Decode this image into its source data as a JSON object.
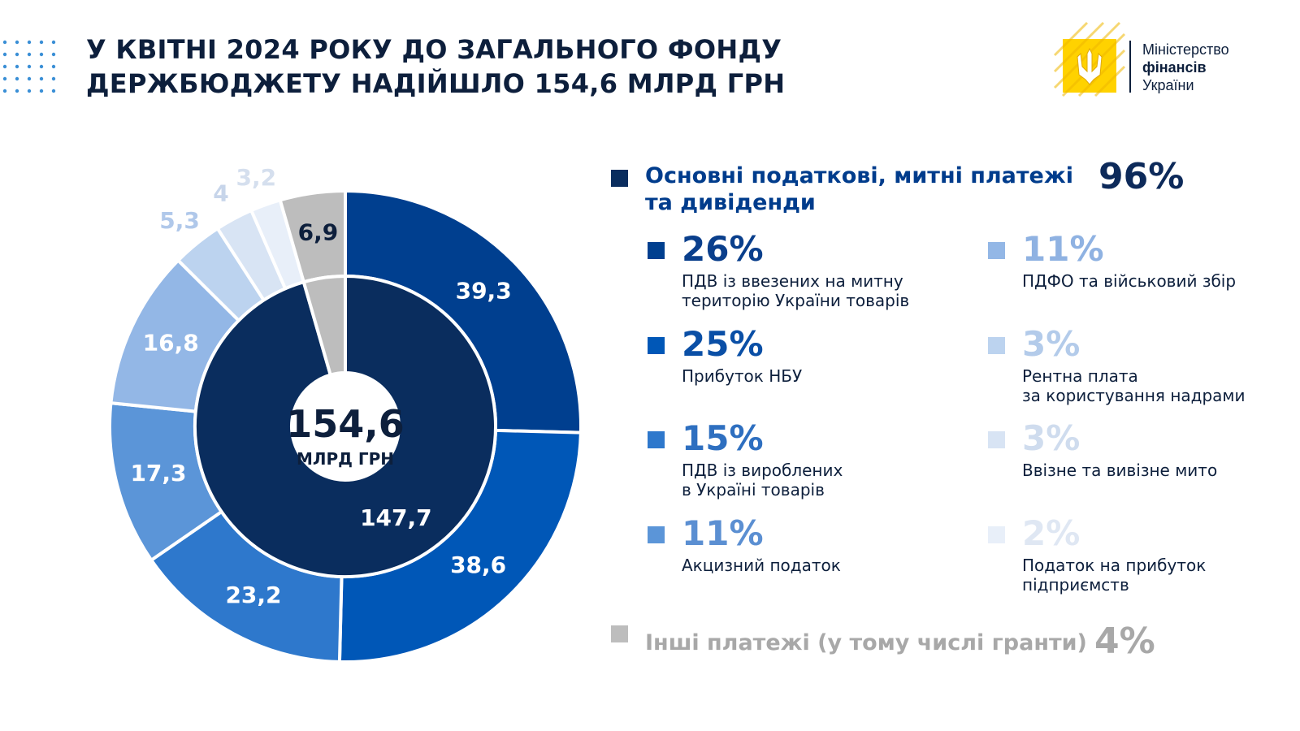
{
  "header": {
    "title_line1": "У КВІТНІ 2024 РОКУ ДО ЗАГАЛЬНОГО ФОНДУ",
    "title_line2": "ДЕРЖБЮДЖЕТУ НАДІЙШЛО 154,6 МЛРД ГРН"
  },
  "logo": {
    "line1": "Міністерство",
    "line2": "фінансів",
    "line3": "України"
  },
  "chart_data": {
    "type": "pie",
    "variant": "nested-donut",
    "center_value": "154,6",
    "center_unit": "МЛРД ГРН",
    "inner_ring": [
      {
        "name": "Основні податкові, митні платежі та дивіденди",
        "value": 147.7,
        "label": "147,7",
        "color": "#0a2d5e"
      },
      {
        "name": "Інші платежі (у тому числі гранти)",
        "value": 6.9,
        "label": "6,9",
        "color": "#bdbdbd"
      }
    ],
    "outer_ring": [
      {
        "name": "ПДВ із ввезених на митну територію України товарів",
        "value": 39.3,
        "label": "39,3",
        "color": "#003f8f",
        "label_color": "#ffffff"
      },
      {
        "name": "Прибуток НБУ",
        "value": 38.6,
        "label": "38,6",
        "color": "#0057b7",
        "label_color": "#ffffff"
      },
      {
        "name": "ПДВ із вироблених в Україні товарів",
        "value": 23.2,
        "label": "23,2",
        "color": "#2e78cc",
        "label_color": "#ffffff"
      },
      {
        "name": "Акцизний податок",
        "value": 17.3,
        "label": "17,3",
        "color": "#5b95d8",
        "label_color": "#ffffff"
      },
      {
        "name": "ПДФО та військовий збір",
        "value": 16.8,
        "label": "16,8",
        "color": "#93b7e6",
        "label_color": "#ffffff"
      },
      {
        "name": "Рентна плата за користування надрами",
        "value": 5.3,
        "label": "5,3",
        "color": "#bcd3ef",
        "label_color": "#b0c8ea"
      },
      {
        "name": "Ввізне та вивізне мито",
        "value": 4.0,
        "label": "4",
        "color": "#d8e4f4",
        "label_color": "#c7d5ea"
      },
      {
        "name": "Податок на прибуток підприємств",
        "value": 3.2,
        "label": "3,2",
        "color": "#e8eff9",
        "label_color": "#d5dfee"
      },
      {
        "name": "Інші платежі",
        "value": 6.9,
        "label": "6,9",
        "color": "#bdbdbd",
        "label_color": "#0d1f3c"
      }
    ]
  },
  "legend": {
    "main_label_line1": "Основні податкові, митні платежі",
    "main_label_line2": "та дивіденди",
    "main_pct": "96%",
    "main_color": "#0a2d5e",
    "items_left": [
      {
        "pct": "26%",
        "label_line1": "ПДВ із ввезених на митну",
        "label_line2": "територію України товарів",
        "color": "#003f8f",
        "pct_color": "#0a3f8c"
      },
      {
        "pct": "25%",
        "label_line1": "Прибуток НБУ",
        "label_line2": "",
        "color": "#0057b7",
        "pct_color": "#0a4fa6"
      },
      {
        "pct": "15%",
        "label_line1": "ПДВ із вироблених",
        "label_line2": "в Україні товарів",
        "color": "#2e78cc",
        "pct_color": "#2e6fc0"
      },
      {
        "pct": "11%",
        "label_line1": "Акцизний податок",
        "label_line2": "",
        "color": "#5b95d8",
        "pct_color": "#5b8fd2"
      }
    ],
    "items_right": [
      {
        "pct": "11%",
        "label_line1": "ПДФО та військовий збір",
        "label_line2": "",
        "color": "#93b7e6",
        "pct_color": "#8fb2e2"
      },
      {
        "pct": "3%",
        "label_line1": "Рентна плата",
        "label_line2": "за користування надрами",
        "color": "#bcd3ef",
        "pct_color": "#b3cbea"
      },
      {
        "pct": "3%",
        "label_line1": "Ввізне та вивізне мито",
        "label_line2": "",
        "color": "#d8e4f4",
        "pct_color": "#cfdcee"
      },
      {
        "pct": "2%",
        "label_line1": "Податок на прибуток",
        "label_line2": "підприємств",
        "color": "#e8eff9",
        "pct_color": "#dfe7f3"
      }
    ],
    "other_label": "Інші платежі (у тому числі гранти)",
    "other_pct": "4%",
    "other_color": "#bdbdbd"
  }
}
